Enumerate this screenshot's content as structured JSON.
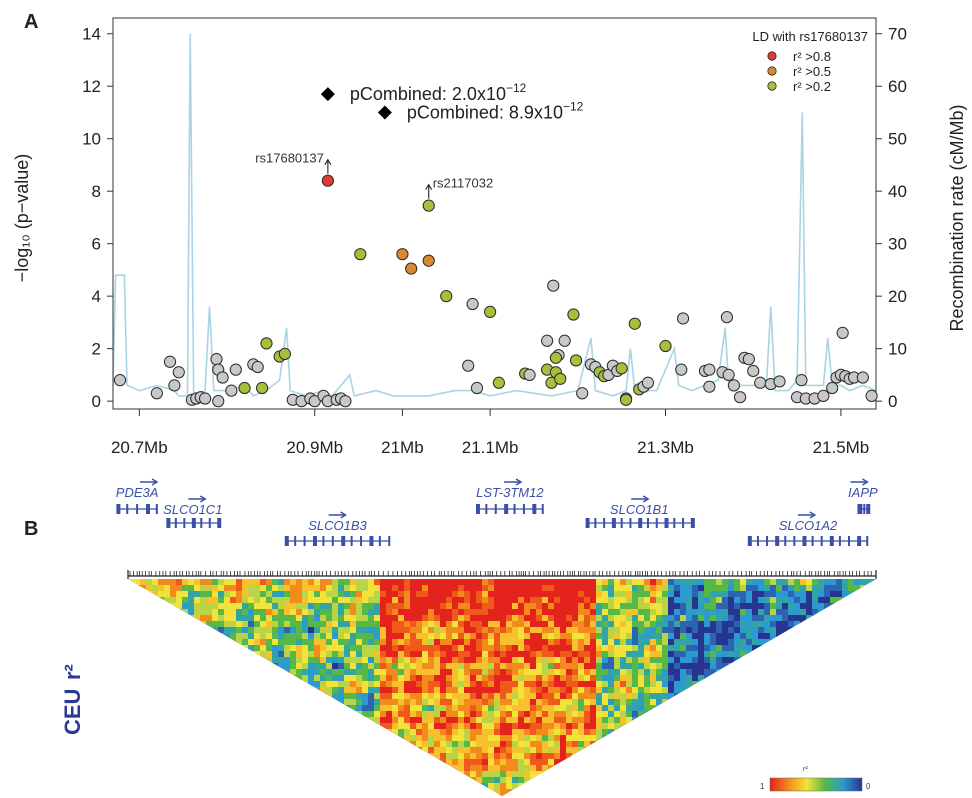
{
  "panels": {
    "a_label": "A",
    "b_label": "B"
  },
  "chart_data": {
    "type": "scatter",
    "ylabel_left": "−log₁₀ (p−value)",
    "ylabel_right": "Recombination rate (cM/Mb)",
    "xlim": [
      20.67,
      21.54
    ],
    "ylim_left": [
      -0.3,
      14.6
    ],
    "ylim_right": [
      -1.5,
      73
    ],
    "x_ticks": [
      {
        "value": 20.7,
        "label": "20.7Mb"
      },
      {
        "value": 20.9,
        "label": "20.9Mb"
      },
      {
        "value": 21.0,
        "label": "21Mb"
      },
      {
        "value": 21.1,
        "label": "21.1Mb"
      },
      {
        "value": 21.3,
        "label": "21.3Mb"
      },
      {
        "value": 21.5,
        "label": "21.5Mb"
      }
    ],
    "y_ticks_left": [
      0,
      2,
      4,
      6,
      8,
      10,
      12,
      14
    ],
    "y_ticks_right": [
      0,
      10,
      20,
      30,
      40,
      50,
      60,
      70
    ],
    "grid": false,
    "legend": {
      "title": "LD with rs17680137",
      "position": "top-right",
      "entries": [
        {
          "label": "r² >0.8",
          "color": "#e03b32"
        },
        {
          "label": "r² >0.5",
          "color": "#d98a30"
        },
        {
          "label": "r² >0.2",
          "color": "#a8bf3c"
        }
      ]
    },
    "colors": {
      "gray": "#c8c8c8",
      "red": "#e03b32",
      "orange": "#d98a30",
      "olive": "#a8bf3c",
      "recomb": "#a9d4e3",
      "gene": "#3a4fa8",
      "axis": "#333333"
    },
    "combined": [
      {
        "x": 20.915,
        "y": 11.7,
        "label": "pCombined: 2.0x10",
        "exp": "−12"
      },
      {
        "x": 20.98,
        "y": 11.0,
        "label": "pCombined: 8.9x10",
        "exp": "−12"
      }
    ],
    "annotations": [
      {
        "text": "rs17680137",
        "x": 20.915,
        "y": 8.4
      },
      {
        "text": "rs2117032",
        "x": 21.03,
        "y": 7.45
      }
    ],
    "points": [
      {
        "x": 20.678,
        "y": 0.8,
        "c": "gray"
      },
      {
        "x": 20.72,
        "y": 0.3,
        "c": "gray"
      },
      {
        "x": 20.735,
        "y": 1.5,
        "c": "gray"
      },
      {
        "x": 20.74,
        "y": 0.6,
        "c": "gray"
      },
      {
        "x": 20.745,
        "y": 1.1,
        "c": "gray"
      },
      {
        "x": 20.76,
        "y": 0.05,
        "c": "gray"
      },
      {
        "x": 20.765,
        "y": 0.1,
        "c": "gray"
      },
      {
        "x": 20.77,
        "y": 0.15,
        "c": "gray"
      },
      {
        "x": 20.775,
        "y": 0.1,
        "c": "gray"
      },
      {
        "x": 20.79,
        "y": 0.0,
        "c": "gray"
      },
      {
        "x": 20.788,
        "y": 1.6,
        "c": "gray"
      },
      {
        "x": 20.79,
        "y": 1.2,
        "c": "gray"
      },
      {
        "x": 20.795,
        "y": 0.9,
        "c": "gray"
      },
      {
        "x": 20.805,
        "y": 0.4,
        "c": "gray"
      },
      {
        "x": 20.81,
        "y": 1.2,
        "c": "gray"
      },
      {
        "x": 20.83,
        "y": 1.4,
        "c": "gray"
      },
      {
        "x": 20.835,
        "y": 1.3,
        "c": "gray"
      },
      {
        "x": 20.82,
        "y": 0.5,
        "c": "olive"
      },
      {
        "x": 20.84,
        "y": 0.5,
        "c": "olive"
      },
      {
        "x": 20.845,
        "y": 2.2,
        "c": "olive"
      },
      {
        "x": 20.86,
        "y": 1.7,
        "c": "olive"
      },
      {
        "x": 20.866,
        "y": 1.8,
        "c": "olive"
      },
      {
        "x": 20.875,
        "y": 0.05,
        "c": "gray"
      },
      {
        "x": 20.885,
        "y": 0.0,
        "c": "gray"
      },
      {
        "x": 20.895,
        "y": 0.1,
        "c": "gray"
      },
      {
        "x": 20.9,
        "y": 0.0,
        "c": "gray"
      },
      {
        "x": 20.91,
        "y": 0.2,
        "c": "gray"
      },
      {
        "x": 20.915,
        "y": 0.0,
        "c": "gray"
      },
      {
        "x": 20.925,
        "y": 0.05,
        "c": "gray"
      },
      {
        "x": 20.93,
        "y": 0.1,
        "c": "gray"
      },
      {
        "x": 20.935,
        "y": 0.0,
        "c": "gray"
      },
      {
        "x": 20.915,
        "y": 8.4,
        "c": "red"
      },
      {
        "x": 20.952,
        "y": 5.6,
        "c": "olive"
      },
      {
        "x": 21.0,
        "y": 5.6,
        "c": "orange"
      },
      {
        "x": 21.01,
        "y": 5.05,
        "c": "orange"
      },
      {
        "x": 21.03,
        "y": 5.35,
        "c": "orange"
      },
      {
        "x": 21.03,
        "y": 7.45,
        "c": "olive"
      },
      {
        "x": 21.05,
        "y": 4.0,
        "c": "olive"
      },
      {
        "x": 21.08,
        "y": 3.7,
        "c": "gray"
      },
      {
        "x": 21.1,
        "y": 3.4,
        "c": "olive"
      },
      {
        "x": 21.075,
        "y": 1.35,
        "c": "gray"
      },
      {
        "x": 21.085,
        "y": 0.5,
        "c": "gray"
      },
      {
        "x": 21.11,
        "y": 0.7,
        "c": "olive"
      },
      {
        "x": 21.14,
        "y": 1.05,
        "c": "olive"
      },
      {
        "x": 21.145,
        "y": 1.0,
        "c": "gray"
      },
      {
        "x": 21.165,
        "y": 1.2,
        "c": "olive"
      },
      {
        "x": 21.17,
        "y": 0.7,
        "c": "olive"
      },
      {
        "x": 21.175,
        "y": 1.1,
        "c": "olive"
      },
      {
        "x": 21.18,
        "y": 0.85,
        "c": "olive"
      },
      {
        "x": 21.165,
        "y": 2.3,
        "c": "gray"
      },
      {
        "x": 21.172,
        "y": 4.4,
        "c": "gray"
      },
      {
        "x": 21.178,
        "y": 1.75,
        "c": "gray"
      },
      {
        "x": 21.185,
        "y": 2.3,
        "c": "gray"
      },
      {
        "x": 21.175,
        "y": 1.65,
        "c": "olive"
      },
      {
        "x": 21.195,
        "y": 3.3,
        "c": "olive"
      },
      {
        "x": 21.198,
        "y": 1.55,
        "c": "olive"
      },
      {
        "x": 21.205,
        "y": 0.3,
        "c": "gray"
      },
      {
        "x": 21.215,
        "y": 1.4,
        "c": "gray"
      },
      {
        "x": 21.22,
        "y": 1.3,
        "c": "gray"
      },
      {
        "x": 21.225,
        "y": 1.1,
        "c": "olive"
      },
      {
        "x": 21.23,
        "y": 0.95,
        "c": "olive"
      },
      {
        "x": 21.235,
        "y": 1.0,
        "c": "gray"
      },
      {
        "x": 21.24,
        "y": 1.35,
        "c": "gray"
      },
      {
        "x": 21.245,
        "y": 1.15,
        "c": "gray"
      },
      {
        "x": 21.25,
        "y": 1.25,
        "c": "olive"
      },
      {
        "x": 21.255,
        "y": 0.1,
        "c": "olive"
      },
      {
        "x": 21.255,
        "y": 0.05,
        "c": "olive"
      },
      {
        "x": 21.265,
        "y": 2.95,
        "c": "olive"
      },
      {
        "x": 21.27,
        "y": 0.45,
        "c": "olive"
      },
      {
        "x": 21.275,
        "y": 0.55,
        "c": "gray"
      },
      {
        "x": 21.28,
        "y": 0.7,
        "c": "gray"
      },
      {
        "x": 21.3,
        "y": 2.1,
        "c": "olive"
      },
      {
        "x": 21.318,
        "y": 1.2,
        "c": "gray"
      },
      {
        "x": 21.32,
        "y": 3.15,
        "c": "gray"
      },
      {
        "x": 21.345,
        "y": 1.15,
        "c": "gray"
      },
      {
        "x": 21.35,
        "y": 1.2,
        "c": "gray"
      },
      {
        "x": 21.35,
        "y": 0.55,
        "c": "gray"
      },
      {
        "x": 21.365,
        "y": 1.1,
        "c": "gray"
      },
      {
        "x": 21.37,
        "y": 3.2,
        "c": "gray"
      },
      {
        "x": 21.372,
        "y": 1.0,
        "c": "gray"
      },
      {
        "x": 21.378,
        "y": 0.6,
        "c": "gray"
      },
      {
        "x": 21.385,
        "y": 0.15,
        "c": "gray"
      },
      {
        "x": 21.39,
        "y": 1.65,
        "c": "gray"
      },
      {
        "x": 21.395,
        "y": 1.6,
        "c": "gray"
      },
      {
        "x": 21.4,
        "y": 1.15,
        "c": "gray"
      },
      {
        "x": 21.408,
        "y": 0.7,
        "c": "gray"
      },
      {
        "x": 21.42,
        "y": 0.65,
        "c": "gray"
      },
      {
        "x": 21.43,
        "y": 0.75,
        "c": "gray"
      },
      {
        "x": 21.45,
        "y": 0.15,
        "c": "gray"
      },
      {
        "x": 21.455,
        "y": 0.8,
        "c": "gray"
      },
      {
        "x": 21.46,
        "y": 0.1,
        "c": "gray"
      },
      {
        "x": 21.47,
        "y": 0.1,
        "c": "gray"
      },
      {
        "x": 21.48,
        "y": 0.2,
        "c": "gray"
      },
      {
        "x": 21.49,
        "y": 0.5,
        "c": "gray"
      },
      {
        "x": 21.495,
        "y": 0.9,
        "c": "gray"
      },
      {
        "x": 21.5,
        "y": 1.0,
        "c": "gray"
      },
      {
        "x": 21.502,
        "y": 2.6,
        "c": "gray"
      },
      {
        "x": 21.505,
        "y": 0.95,
        "c": "gray"
      },
      {
        "x": 21.51,
        "y": 0.85,
        "c": "gray"
      },
      {
        "x": 21.515,
        "y": 0.9,
        "c": "gray"
      },
      {
        "x": 21.525,
        "y": 0.9,
        "c": "gray"
      },
      {
        "x": 21.535,
        "y": 0.2,
        "c": "gray"
      }
    ],
    "recombination": [
      [
        20.67,
        3
      ],
      [
        20.673,
        24
      ],
      [
        20.683,
        24
      ],
      [
        20.686,
        3
      ],
      [
        20.7,
        2
      ],
      [
        20.72,
        3
      ],
      [
        20.74,
        2
      ],
      [
        20.745,
        1
      ],
      [
        20.755,
        1
      ],
      [
        20.758,
        70
      ],
      [
        20.762,
        1
      ],
      [
        20.775,
        2
      ],
      [
        20.78,
        18
      ],
      [
        20.785,
        2
      ],
      [
        20.8,
        2
      ],
      [
        20.82,
        3
      ],
      [
        20.83,
        1
      ],
      [
        20.845,
        2
      ],
      [
        20.86,
        4
      ],
      [
        20.868,
        14
      ],
      [
        20.872,
        2
      ],
      [
        20.89,
        1
      ],
      [
        20.91,
        2
      ],
      [
        20.92,
        1
      ],
      [
        20.94,
        5
      ],
      [
        20.945,
        1
      ],
      [
        20.97,
        2
      ],
      [
        20.99,
        1
      ],
      [
        21.03,
        1
      ],
      [
        21.06,
        2
      ],
      [
        21.08,
        2
      ],
      [
        21.1,
        1
      ],
      [
        21.13,
        2
      ],
      [
        21.17,
        1
      ],
      [
        21.2,
        2
      ],
      [
        21.215,
        12
      ],
      [
        21.22,
        2
      ],
      [
        21.24,
        1
      ],
      [
        21.255,
        2
      ],
      [
        21.26,
        10
      ],
      [
        21.265,
        2
      ],
      [
        21.29,
        2
      ],
      [
        21.31,
        10
      ],
      [
        21.315,
        3
      ],
      [
        21.33,
        2
      ],
      [
        21.345,
        3
      ],
      [
        21.36,
        4
      ],
      [
        21.368,
        14
      ],
      [
        21.372,
        3
      ],
      [
        21.39,
        3
      ],
      [
        21.415,
        3
      ],
      [
        21.42,
        18
      ],
      [
        21.425,
        2
      ],
      [
        21.44,
        2
      ],
      [
        21.45,
        4
      ],
      [
        21.456,
        55
      ],
      [
        21.46,
        3
      ],
      [
        21.48,
        3
      ],
      [
        21.485,
        12
      ],
      [
        21.49,
        3
      ],
      [
        21.5,
        3
      ],
      [
        21.51,
        2
      ],
      [
        21.525,
        3
      ],
      [
        21.54,
        2
      ]
    ],
    "genes": [
      {
        "name": "PDE3A",
        "start": 20.675,
        "end": 20.72,
        "row": 0,
        "arrow_x": 20.71
      },
      {
        "name": "SLCO1C1",
        "start": 20.732,
        "end": 20.79,
        "row": 1,
        "arrow_x": 20.765
      },
      {
        "name": "SLCO1B3",
        "start": 20.867,
        "end": 20.985,
        "row": 2,
        "arrow_x": 20.925
      },
      {
        "name": "LST-3TM12",
        "start": 21.085,
        "end": 21.16,
        "row": 0,
        "arrow_x": 21.125
      },
      {
        "name": "SLCO1B1",
        "start": 21.21,
        "end": 21.33,
        "row": 1,
        "arrow_x": 21.27
      },
      {
        "name": "IAPP",
        "start": 21.52,
        "end": 21.53,
        "row": 0,
        "arrow_x": 21.52
      },
      {
        "name": "SLCO1A2",
        "start": 21.395,
        "end": 21.53,
        "row": 2,
        "arrow_x": 21.46
      }
    ],
    "ld_panel": {
      "population": "CEU",
      "metric": "r²",
      "scale_title": "r²",
      "scale_min_label": "1",
      "scale_max_label": "0"
    }
  }
}
